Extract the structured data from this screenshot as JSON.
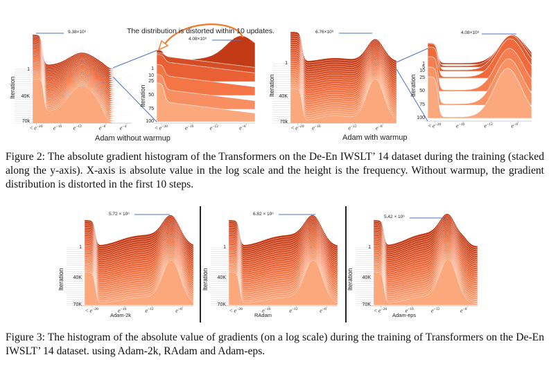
{
  "figure2": {
    "headline": "The distribution is distorted within 10 updates.",
    "groups": [
      {
        "label": "Adam without warmup",
        "main": {
          "y_label": "Iteration",
          "y_ticks": [
            "1",
            "40K",
            "70k"
          ],
          "peak": "9.38×10⁶",
          "x_ticks": [
            {
              "p": "< ",
              "e": "−20"
            },
            {
              "p": "",
              "e": "−16"
            },
            {
              "p": "",
              "e": "−12"
            },
            {
              "p": "",
              "e": "−8"
            },
            {
              "p": "",
              "e": "−4"
            }
          ]
        },
        "inset": {
          "y_label": "Iteration",
          "y_ticks": [
            "1",
            "10",
            "25",
            "50",
            "75",
            "100"
          ],
          "peak": "4.08×10⁶",
          "x_ticks": [
            {
              "p": "< ",
              "e": "−20"
            },
            {
              "p": "",
              "e": "−16"
            },
            {
              "p": "",
              "e": "−12"
            },
            {
              "p": "",
              "e": "−8"
            }
          ]
        }
      },
      {
        "label": "Adam with warmup",
        "main": {
          "y_label": "Iteration",
          "y_ticks": [
            "1",
            "40K",
            "70k"
          ],
          "peak": "6.76×10⁶",
          "x_ticks": [
            {
              "p": "< ",
              "e": "−20"
            },
            {
              "p": "",
              "e": "−16"
            },
            {
              "p": "",
              "e": "−12"
            },
            {
              "p": "",
              "e": "−8"
            }
          ]
        },
        "inset": {
          "y_label": "Iteration",
          "y_ticks": [
            "1",
            "5",
            "10",
            "25",
            "50",
            "75",
            "100"
          ],
          "peak": "4.08×10⁶",
          "x_ticks": [
            {
              "p": "< ",
              "e": "−20"
            },
            {
              "p": "",
              "e": "−16"
            },
            {
              "p": "",
              "e": "−12"
            },
            {
              "p": "",
              "e": "−8"
            }
          ]
        }
      }
    ],
    "caption": "Figure 2: The absolute gradient histogram of the Transformers on the De-En IWSLT’ 14 dataset during the training (stacked along the y-axis). X-axis is absolute value in the log scale and the height is the frequency. Without warmup, the gradient distribution is distorted in the first 10 steps."
  },
  "figure3": {
    "panels": [
      {
        "label": "Adam-2k",
        "y_label": "Iteration",
        "y_ticks": [
          "1",
          "40K",
          "70K"
        ],
        "peak": "5.72 × 10⁶",
        "x_ticks": [
          {
            "p": "< ",
            "e": "−20"
          },
          {
            "p": "",
            "e": "−16"
          },
          {
            "p": "",
            "e": "−12"
          },
          {
            "p": "",
            "e": "−8"
          }
        ]
      },
      {
        "label": "RAdam",
        "y_label": "Iteration",
        "y_ticks": [
          "1",
          "40K",
          "70K"
        ],
        "peak": "6.82 × 10⁶",
        "x_ticks": [
          {
            "p": "< ",
            "e": "−20"
          },
          {
            "p": "",
            "e": "−16"
          },
          {
            "p": "",
            "e": "−12"
          },
          {
            "p": "",
            "e": "−8"
          }
        ]
      },
      {
        "label": "Adam-eps",
        "y_label": "Iteration",
        "y_ticks": [
          "1",
          "40K",
          "70K"
        ],
        "peak": "5.42 × 10⁶",
        "x_ticks": [
          {
            "p": "< ",
            "e": "−20"
          },
          {
            "p": "",
            "e": "−16"
          },
          {
            "p": "",
            "e": "−12"
          },
          {
            "p": "",
            "e": "−8"
          }
        ]
      }
    ],
    "caption": "Figure 3: The histogram of the absolute value of gradients (on a log scale) during the training of Transformers on the De-En IWSLT’ 14 dataset. using Adam-2k, RAdam and Adam-eps."
  },
  "colors": {
    "back_layer": "#c23a16",
    "mid_layer": "#f26a3a",
    "front_layer": "#fba87c",
    "leader_line": "#4a72c4",
    "arrow": "#f07a2a"
  }
}
